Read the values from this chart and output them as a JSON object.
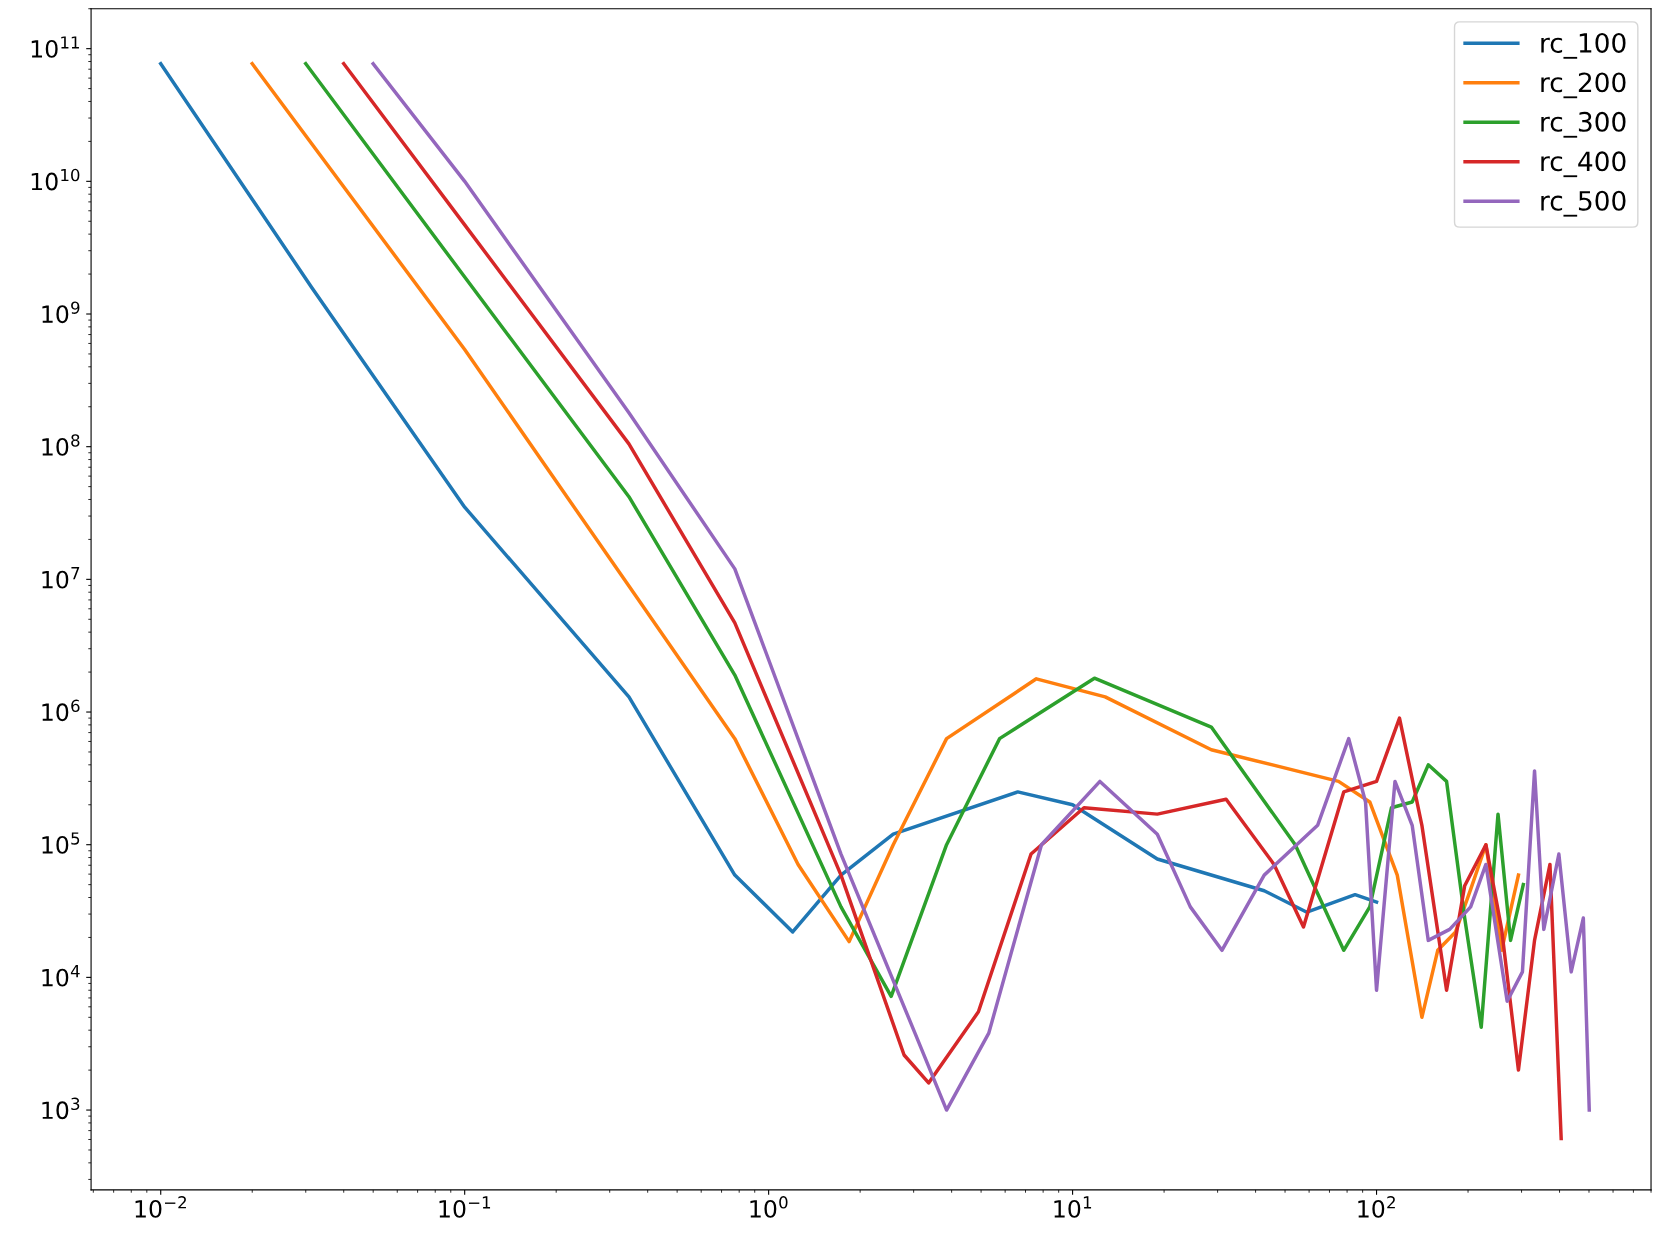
{
  "chart_data": {
    "type": "line",
    "log": "xy",
    "legend": "top right",
    "grid": false,
    "xlim": [
      0.0059,
      800
    ],
    "ylim": [
      250,
      200000000000.0
    ],
    "xticks": [
      {
        "value": 0.01,
        "label": "10$^{−2}$"
      },
      {
        "value": 0.1,
        "label": "10$^{−1}$"
      },
      {
        "value": 1,
        "label": "10$^{0}$"
      },
      {
        "value": 10,
        "label": "10$^{1}$"
      },
      {
        "value": 100,
        "label": "10$^{2}$"
      }
    ],
    "yticks": [
      {
        "value": 1000,
        "label": "10$^{3}$"
      },
      {
        "value": 10000,
        "label": "10$^{4}$"
      },
      {
        "value": 100000,
        "label": "10$^{5}$"
      },
      {
        "value": 1000000,
        "label": "10$^{6}$"
      },
      {
        "value": 10000000,
        "label": "10$^{7}$"
      },
      {
        "value": 100000000,
        "label": "10$^{8}$"
      },
      {
        "value": 1000000000,
        "label": "10$^{9}$"
      },
      {
        "value": 10000000000,
        "label": "10$^{10}$"
      },
      {
        "value": 100000000000,
        "label": "10$^{11}$"
      }
    ],
    "series": [
      {
        "name": "rc_100",
        "color": "#1f77b4",
        "x": [
          0.01,
          0.0313,
          0.1,
          0.347,
          0.774,
          1.2,
          1.73,
          2.57,
          6.6,
          10,
          19,
          42.7,
          59,
          85,
          100
        ],
        "values": [
          77000000000.0,
          1600000000.0,
          35000000.0,
          1300000.0,
          59000.0,
          22000.0,
          59000.0,
          120000.0,
          250000.0,
          200000.0,
          78000.0,
          45000.0,
          31000.0,
          42000.0,
          37000.0
        ]
      },
      {
        "name": "rc_200",
        "color": "#ff7f0e",
        "x": [
          0.02,
          0.1,
          0.347,
          0.774,
          1.25,
          1.84,
          2.57,
          3.85,
          7.6,
          12.8,
          28.6,
          75,
          95,
          117,
          141,
          159,
          182,
          204,
          229,
          258,
          293
        ],
        "values": [
          77000000000.0,
          540000000.0,
          8900000.0,
          630000.0,
          71000.0,
          18600.0,
          100000.0,
          630000.0,
          1780000.0,
          1300000.0,
          520000.0,
          300000.0,
          210000.0,
          59000.0,
          5000.0,
          16000.0,
          22000.0,
          46000.0,
          100000.0,
          16000.0,
          59000.0
        ]
      },
      {
        "name": "rc_300",
        "color": "#2ca02c",
        "x": [
          0.03,
          0.1,
          0.347,
          0.774,
          1.73,
          2.53,
          3.85,
          5.75,
          11.8,
          28.6,
          54,
          78,
          95,
          112,
          131,
          148,
          170,
          195,
          221,
          251,
          276,
          304
        ],
        "values": [
          77000000000.0,
          1900000000.0,
          42000000.0,
          1900000.0,
          34000.0,
          7200.0,
          100000.0,
          630000.0,
          1800000.0,
          770000.0,
          100000.0,
          16000.0,
          34000.0,
          190000.0,
          210000.0,
          400000.0,
          300000.0,
          28000.0,
          4200.0,
          170000.0,
          19000.0,
          50000.0
        ]
      },
      {
        "name": "rc_400",
        "color": "#d62728",
        "x": [
          0.04,
          0.1,
          0.347,
          0.774,
          1.73,
          2.79,
          3.36,
          4.9,
          7.3,
          10.9,
          19,
          32,
          46,
          57.5,
          78,
          100,
          119,
          141,
          170,
          195,
          229,
          258,
          293,
          331,
          372,
          405
        ],
        "values": [
          77000000000.0,
          4700000000.0,
          105000000.0,
          4700000.0,
          59000.0,
          2600.0,
          1600.0,
          5500.0,
          85000.0,
          190000.0,
          170000.0,
          220000.0,
          71000.0,
          24000.0,
          250000.0,
          300000.0,
          900000.0,
          140000.0,
          8000.0,
          49000.0,
          100000.0,
          23000.0,
          2000.0,
          19000.0,
          71000.0,
          610
        ]
      },
      {
        "name": "rc_500",
        "color": "#9467bd",
        "x": [
          0.05,
          0.1,
          0.347,
          0.774,
          1.73,
          3.03,
          3.85,
          5.3,
          7.9,
          12.3,
          19,
          24.4,
          31,
          42.7,
          64,
          81,
          92,
          100,
          115,
          131,
          148,
          174,
          204,
          229,
          269,
          302,
          331,
          355,
          398,
          437,
          479,
          501
        ],
        "values": [
          77000000000.0,
          10000000000.0,
          180000000.0,
          12000000.0,
          85000.0,
          3800.0,
          1000.0,
          3800.0,
          100000.0,
          300000.0,
          120000.0,
          34000.0,
          16000.0,
          59000.0,
          140000.0,
          630000.0,
          210000.0,
          8000.0,
          300000.0,
          140000.0,
          19000.0,
          23000.0,
          34000.0,
          71000.0,
          6600.0,
          11000.0,
          360000.0,
          23000.0,
          85000.0,
          11000.0,
          28000.0,
          1000.0
        ]
      }
    ]
  }
}
